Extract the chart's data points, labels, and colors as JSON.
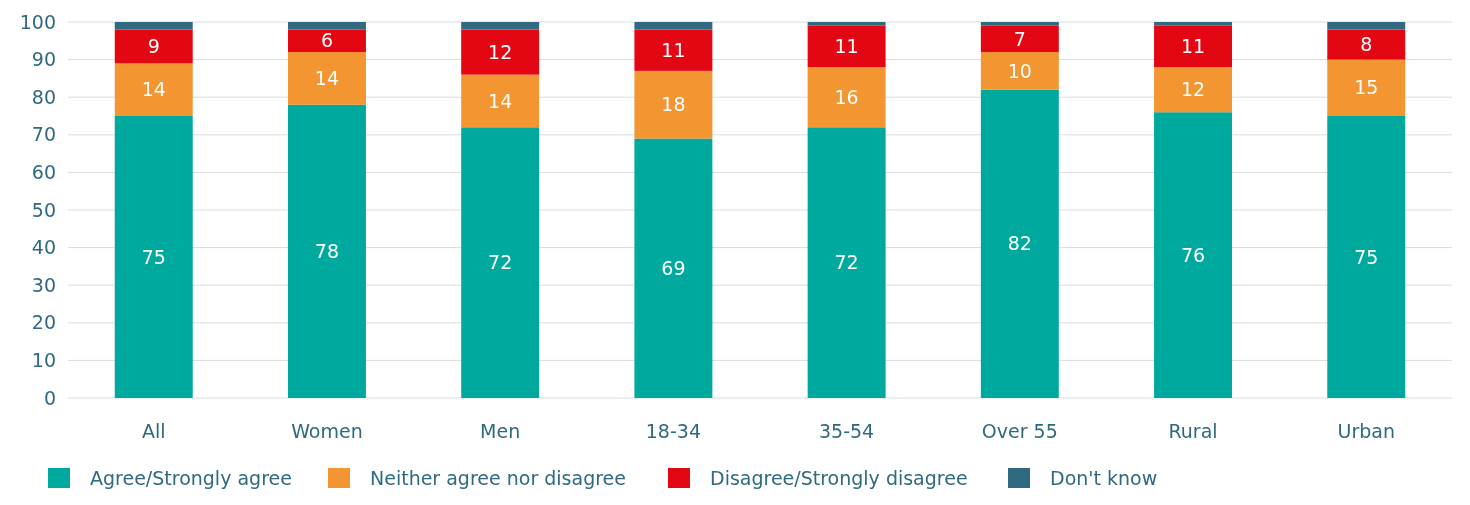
{
  "chart_data": {
    "type": "bar",
    "stacked": true,
    "categories": [
      "All",
      "Women",
      "Men",
      "18-34",
      "35-54",
      "Over 55",
      "Rural",
      "Urban"
    ],
    "series": [
      {
        "name": "Agree/Strongly agree",
        "color": "#00a99d",
        "values": [
          75,
          78,
          72,
          69,
          72,
          82,
          76,
          75
        ],
        "value_labels": [
          "75",
          "78",
          "72",
          "69",
          "72",
          "82",
          "76",
          "75"
        ]
      },
      {
        "name": "Neither agree nor disagree",
        "color": "#f39530",
        "values": [
          14,
          14,
          14,
          18,
          16,
          10,
          12,
          15
        ],
        "value_labels": [
          "14",
          "14",
          "14",
          "18",
          "16",
          "10",
          "12",
          "15"
        ]
      },
      {
        "name": "Disagree/Strongly disagree",
        "color": "#e30613",
        "values": [
          9,
          6,
          12,
          11,
          11,
          7,
          11,
          8
        ],
        "value_labels": [
          "9",
          "6",
          "12",
          "11",
          "11",
          "7",
          "11",
          "8"
        ]
      },
      {
        "name": "Don't know",
        "color": "#2f6a80",
        "values": [
          2,
          2,
          2,
          2,
          1,
          1,
          1,
          2
        ]
      }
    ],
    "ylim": [
      0,
      100
    ],
    "yticks": [
      0,
      10,
      20,
      30,
      40,
      50,
      60,
      70,
      80,
      90,
      100
    ],
    "grid": "y",
    "legend": "bottom"
  }
}
